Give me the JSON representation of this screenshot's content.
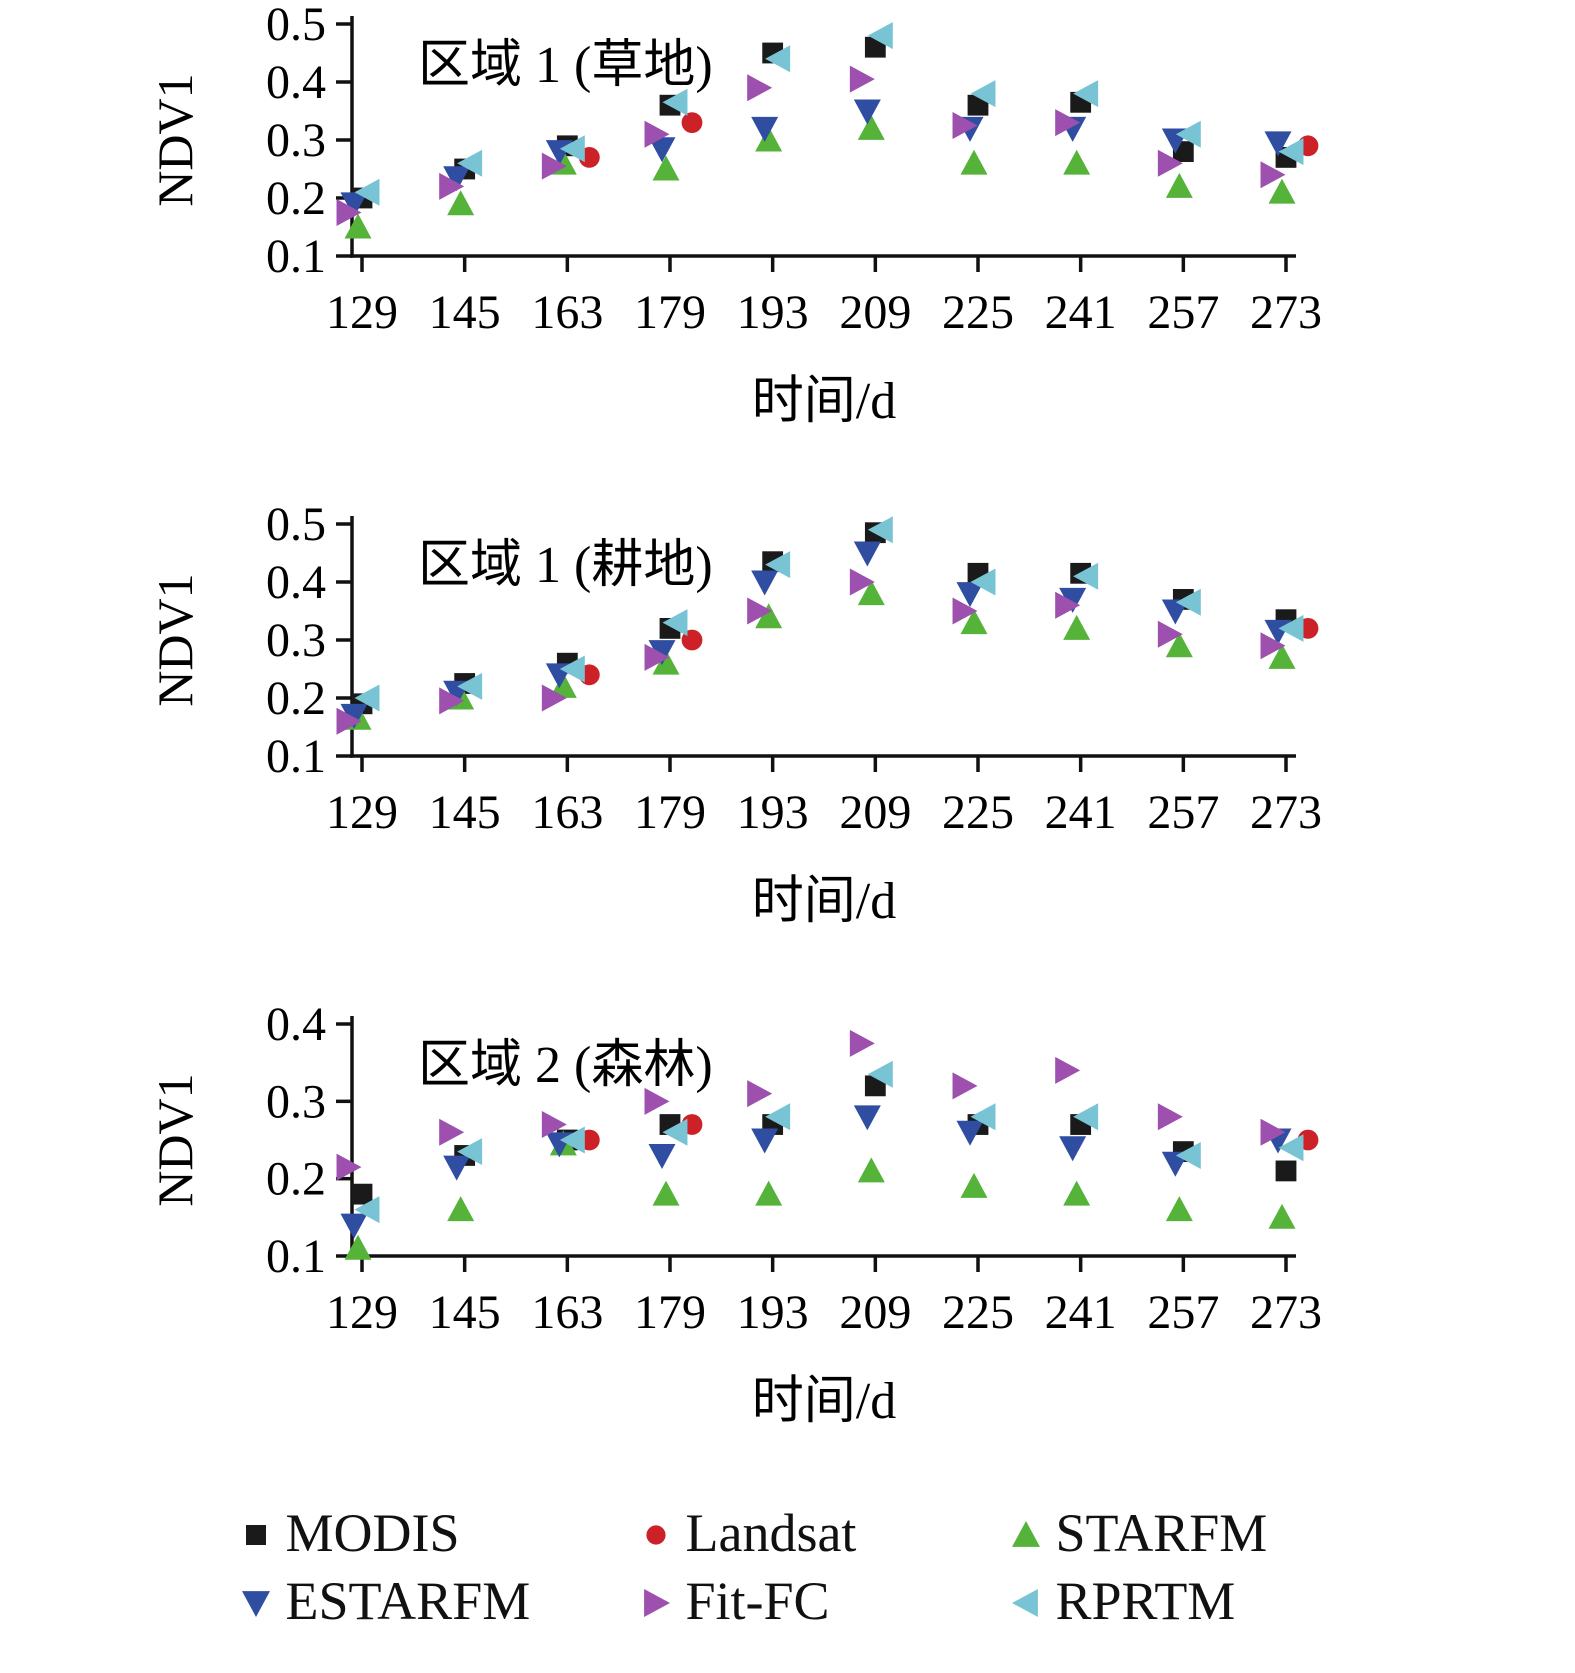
{
  "legend": {
    "items": [
      {
        "label": "MODIS",
        "marker": "square",
        "color": "#1a1a1a"
      },
      {
        "label": "Landsat",
        "marker": "circle",
        "color": "#cc2127"
      },
      {
        "label": "STARFM",
        "marker": "triangle-up",
        "color": "#55b33a"
      },
      {
        "label": "ESTARFM",
        "marker": "triangle-down",
        "color": "#2f4da1"
      },
      {
        "label": "Fit-FC",
        "marker": "triangle-right",
        "color": "#9d50ae"
      },
      {
        "label": "RPRTM",
        "marker": "triangle-left",
        "color": "#78c4d4"
      }
    ]
  },
  "chart_data": [
    {
      "type": "scatter",
      "title": "区域 1 (草地)",
      "xlabel": "时间/d",
      "ylabel": "NDV1",
      "x": [
        129,
        145,
        163,
        179,
        193,
        209,
        225,
        241,
        257,
        273
      ],
      "ylim": [
        0.1,
        0.5
      ],
      "yticks": [
        0.1,
        0.2,
        0.3,
        0.4,
        0.5
      ],
      "grid": false,
      "series": [
        {
          "name": "MODIS",
          "marker": "square",
          "color": "#1a1a1a",
          "values": [
            0.2,
            0.25,
            0.29,
            0.36,
            0.45,
            0.46,
            0.36,
            0.365,
            0.28,
            0.27
          ]
        },
        {
          "name": "Landsat",
          "marker": "circle",
          "color": "#cc2127",
          "values": [
            null,
            null,
            0.27,
            0.33,
            null,
            null,
            null,
            null,
            null,
            0.29
          ]
        },
        {
          "name": "STARFM",
          "marker": "triangle-up",
          "color": "#55b33a",
          "values": [
            0.15,
            0.19,
            0.26,
            0.25,
            0.3,
            0.32,
            0.26,
            0.26,
            0.22,
            0.21
          ]
        },
        {
          "name": "ESTARFM",
          "marker": "triangle-down",
          "color": "#2f4da1",
          "values": [
            0.19,
            0.235,
            0.28,
            0.285,
            0.32,
            0.35,
            0.32,
            0.32,
            0.3,
            0.295
          ]
        },
        {
          "name": "Fit-FC",
          "marker": "triangle-right",
          "color": "#9d50ae",
          "values": [
            0.175,
            0.22,
            0.255,
            0.31,
            0.39,
            0.405,
            0.325,
            0.33,
            0.26,
            0.24
          ]
        },
        {
          "name": "RPRTM",
          "marker": "triangle-left",
          "color": "#78c4d4",
          "values": [
            0.21,
            0.26,
            0.285,
            0.365,
            0.44,
            0.48,
            0.38,
            0.38,
            0.31,
            0.28
          ]
        }
      ]
    },
    {
      "type": "scatter",
      "title": "区域 1 (耕地)",
      "xlabel": "时间/d",
      "ylabel": "NDV1",
      "x": [
        129,
        145,
        163,
        179,
        193,
        209,
        225,
        241,
        257,
        273
      ],
      "ylim": [
        0.1,
        0.5
      ],
      "yticks": [
        0.1,
        0.2,
        0.3,
        0.4,
        0.5
      ],
      "grid": false,
      "series": [
        {
          "name": "MODIS",
          "marker": "square",
          "color": "#1a1a1a",
          "values": [
            0.19,
            0.225,
            0.26,
            0.32,
            0.435,
            0.485,
            0.415,
            0.415,
            0.37,
            0.335
          ]
        },
        {
          "name": "Landsat",
          "marker": "circle",
          "color": "#cc2127",
          "values": [
            null,
            null,
            0.24,
            0.3,
            null,
            null,
            null,
            null,
            null,
            0.32
          ]
        },
        {
          "name": "STARFM",
          "marker": "triangle-up",
          "color": "#55b33a",
          "values": [
            0.165,
            0.2,
            0.22,
            0.26,
            0.34,
            0.38,
            0.33,
            0.32,
            0.29,
            0.27
          ]
        },
        {
          "name": "ESTARFM",
          "marker": "triangle-down",
          "color": "#2f4da1",
          "values": [
            0.17,
            0.21,
            0.24,
            0.28,
            0.4,
            0.45,
            0.38,
            0.37,
            0.35,
            0.315
          ]
        },
        {
          "name": "Fit-FC",
          "marker": "triangle-right",
          "color": "#9d50ae",
          "values": [
            0.16,
            0.195,
            0.2,
            0.27,
            0.35,
            0.4,
            0.35,
            0.36,
            0.31,
            0.29
          ]
        },
        {
          "name": "RPRTM",
          "marker": "triangle-left",
          "color": "#78c4d4",
          "values": [
            0.2,
            0.22,
            0.25,
            0.33,
            0.43,
            0.49,
            0.4,
            0.41,
            0.365,
            0.32
          ]
        }
      ]
    },
    {
      "type": "scatter",
      "title": "区域 2 (森林)",
      "xlabel": "时间/d",
      "ylabel": "NDV1",
      "x": [
        129,
        145,
        163,
        179,
        193,
        209,
        225,
        241,
        257,
        273
      ],
      "ylim": [
        0.1,
        0.4
      ],
      "yticks": [
        0.1,
        0.2,
        0.3,
        0.4
      ],
      "grid": false,
      "series": [
        {
          "name": "MODIS",
          "marker": "square",
          "color": "#1a1a1a",
          "values": [
            0.18,
            0.23,
            0.25,
            0.27,
            0.27,
            0.32,
            0.27,
            0.27,
            0.235,
            0.21
          ]
        },
        {
          "name": "Landsat",
          "marker": "circle",
          "color": "#cc2127",
          "values": [
            null,
            null,
            0.25,
            0.27,
            null,
            null,
            null,
            null,
            null,
            0.25
          ]
        },
        {
          "name": "STARFM",
          "marker": "triangle-up",
          "color": "#55b33a",
          "values": [
            0.11,
            0.16,
            0.245,
            0.18,
            0.18,
            0.21,
            0.19,
            0.18,
            0.16,
            0.15
          ]
        },
        {
          "name": "ESTARFM",
          "marker": "triangle-down",
          "color": "#2f4da1",
          "values": [
            0.14,
            0.215,
            0.245,
            0.23,
            0.25,
            0.28,
            0.26,
            0.24,
            0.22,
            0.25
          ]
        },
        {
          "name": "Fit-FC",
          "marker": "triangle-right",
          "color": "#9d50ae",
          "values": [
            0.215,
            0.26,
            0.27,
            0.3,
            0.31,
            0.375,
            0.32,
            0.34,
            0.28,
            0.26
          ]
        },
        {
          "name": "RPRTM",
          "marker": "triangle-left",
          "color": "#78c4d4",
          "values": [
            0.16,
            0.235,
            0.25,
            0.26,
            0.28,
            0.335,
            0.28,
            0.28,
            0.23,
            0.24
          ]
        }
      ]
    }
  ]
}
